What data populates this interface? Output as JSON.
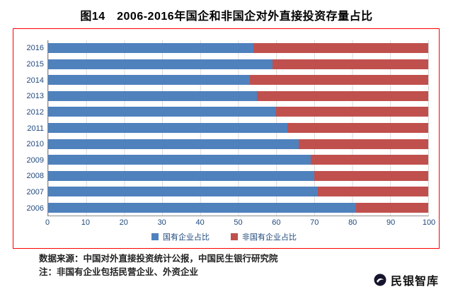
{
  "title": "图14　2006-2016年国企和非国企对外直接投资存量占比",
  "chart_data": {
    "type": "bar",
    "orientation": "horizontal",
    "stacked": true,
    "title": "图14　2006-2016年国企和非国企对外直接投资存量占比",
    "categories": [
      "2016",
      "2015",
      "2014",
      "2013",
      "2012",
      "2011",
      "2010",
      "2009",
      "2008",
      "2007",
      "2006"
    ],
    "series": [
      {
        "name": "国有企业占比",
        "color": "#4F81BD",
        "values": [
          54,
          59,
          53,
          55,
          60,
          63,
          66,
          69,
          70,
          71,
          81
        ]
      },
      {
        "name": "非国有企业占比",
        "color": "#C0504D",
        "values": [
          46,
          41,
          47,
          45,
          40,
          37,
          34,
          31,
          30,
          29,
          19
        ]
      }
    ],
    "xlim": [
      0,
      100
    ],
    "x_ticks": [
      0,
      10,
      20,
      30,
      40,
      50,
      60,
      70,
      80,
      90,
      100
    ],
    "grid": "vertical",
    "legend_position": "bottom"
  },
  "notes": {
    "source": "数据来源：中国对外直接投资统计公报，中国民生银行研究院",
    "note": "注：非国有企业包括民营企业、外资企业"
  },
  "footer": {
    "brand": "民银智库"
  },
  "colors": {
    "series_soe": "#4F81BD",
    "series_non_soe": "#C0504D",
    "frame_border": "#FF0000",
    "axis_text": "#1F497D",
    "gridline": "#D9D9D9"
  }
}
